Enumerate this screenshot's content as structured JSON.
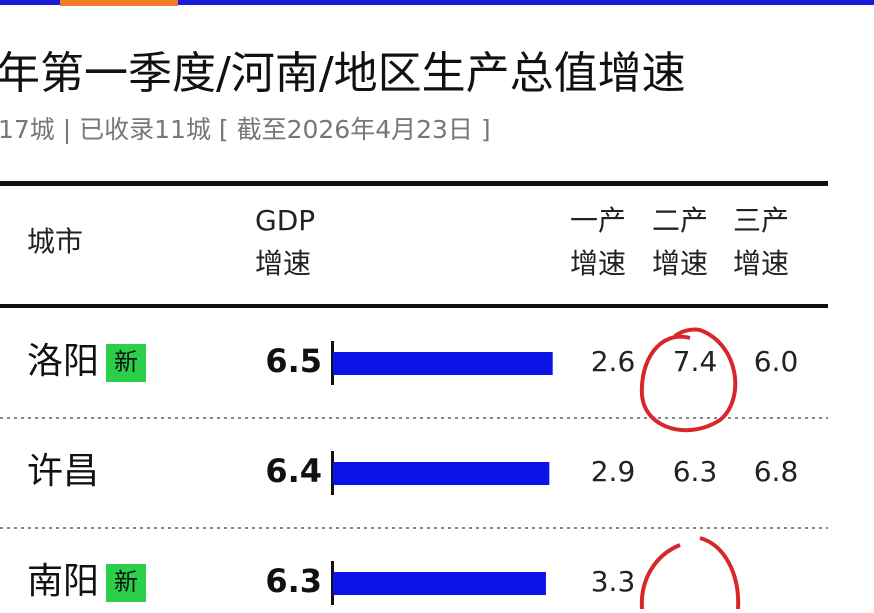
{
  "header": {
    "title": "年第一季度/河南/地区生产总值增速",
    "subtitle": "17城 | 已收录11城 [ 截至2026年4月23日 ]"
  },
  "table": {
    "columns": [
      [
        "城市"
      ],
      [
        "GDP",
        "增速"
      ],
      [
        "一产",
        "增速"
      ],
      [
        "二产",
        "增速"
      ],
      [
        "三产",
        "增速"
      ]
    ],
    "rows": [
      {
        "city": "洛阳",
        "badge": "新",
        "gdp": 6.5,
        "primary": "2.6",
        "secondary": "7.4",
        "tertiary": "6.0"
      },
      {
        "city": "许昌",
        "gdp": 6.4,
        "primary": "2.9",
        "secondary": "6.3",
        "tertiary": "6.8"
      },
      {
        "city": "南阳",
        "badge": "新",
        "gdp": 6.3,
        "primary": "3.3",
        "secondary": null,
        "tertiary": null
      }
    ]
  }
}
